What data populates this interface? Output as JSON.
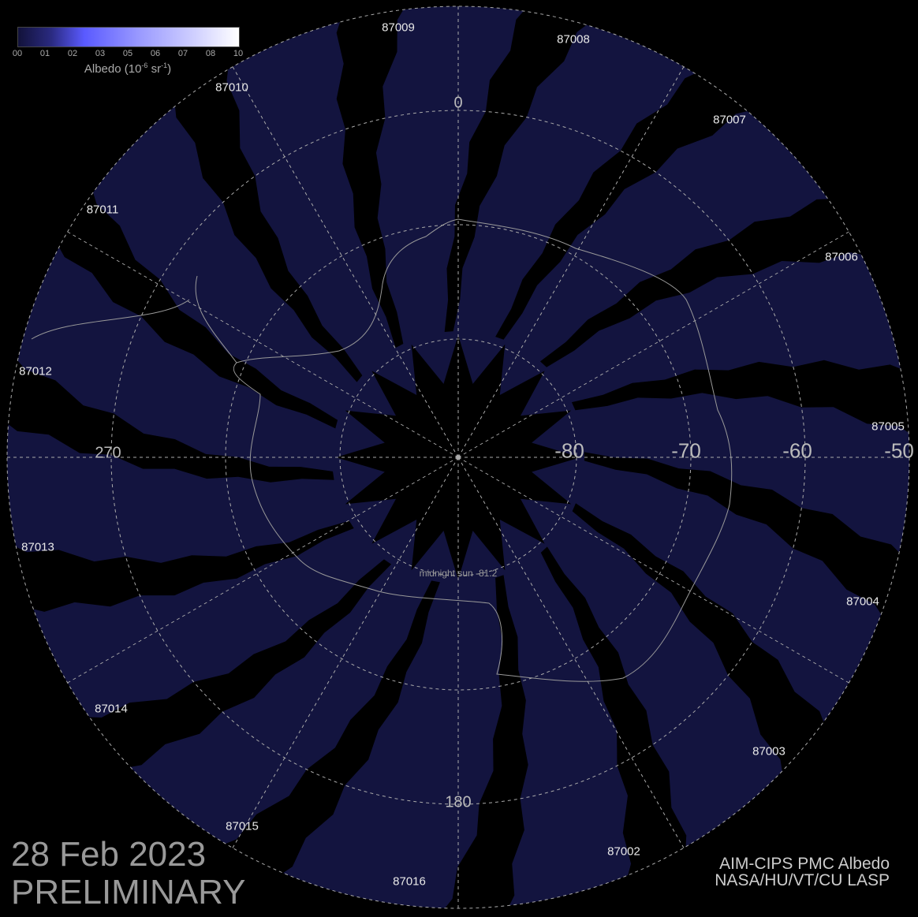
{
  "colorbar": {
    "ticks": [
      "00",
      "01",
      "02",
      "03",
      "05",
      "06",
      "07",
      "08",
      "10"
    ],
    "label_prefix": "Albedo (10",
    "label_exp1": "-6",
    "label_mid": " sr",
    "label_exp2": "-1",
    "label_suffix": ")",
    "colors": [
      "#12123a",
      "#5a5aff",
      "#ffffff"
    ]
  },
  "map": {
    "projection": "south polar stereographic",
    "swath_color": "#13143f",
    "background": "#000000",
    "orbits": [
      "87009",
      "87008",
      "87007",
      "87006",
      "87005",
      "87004",
      "87003",
      "87002",
      "87016",
      "87015",
      "87014",
      "87013",
      "87012",
      "87011",
      "87010"
    ],
    "longitude_labels": {
      "top": "0",
      "left": "270",
      "bottom": "180"
    },
    "latitude_labels": [
      "-80",
      "-70",
      "-60",
      "-50"
    ],
    "midnight_sun": "midnight sun -81.2"
  },
  "footer": {
    "date": "28 Feb 2023",
    "status": "PRELIMINARY",
    "credit_line1": "AIM-CIPS PMC Albedo",
    "credit_line2": "NASA/HU/VT/CU LASP"
  }
}
